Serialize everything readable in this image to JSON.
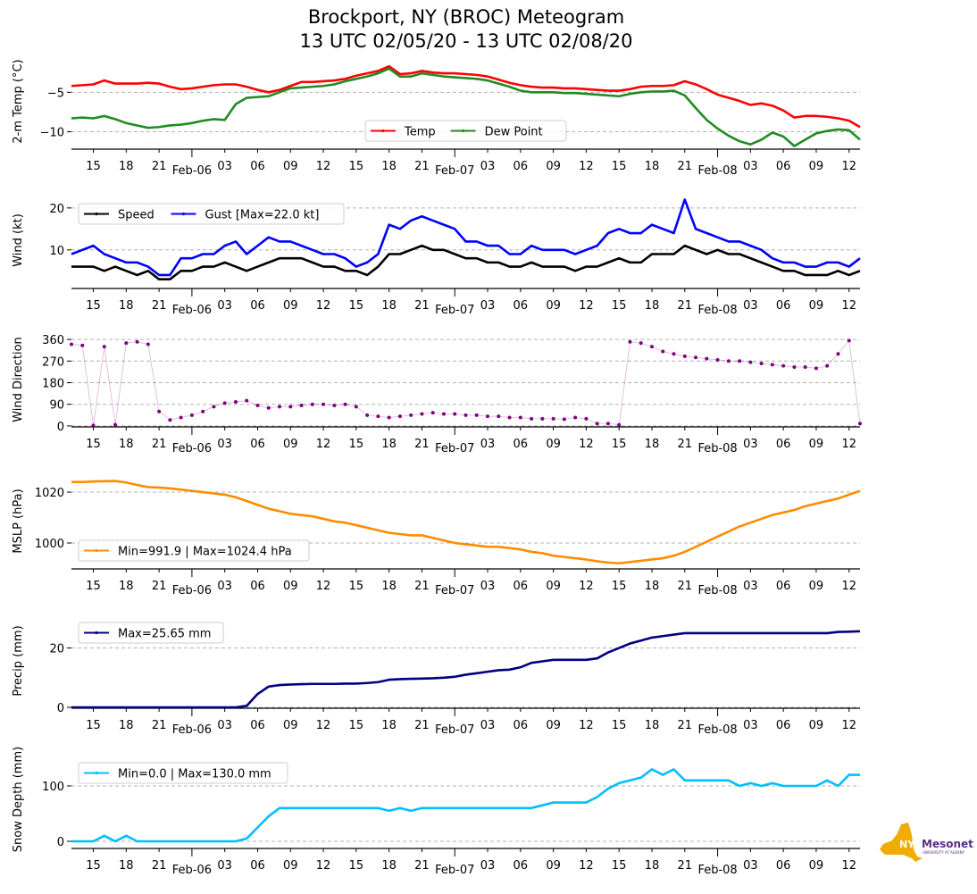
{
  "title": {
    "line1": "Brockport, NY (BROC) Meteogram",
    "line2": "13 UTC 02/05/20 - 13 UTC 02/08/20"
  },
  "logo": {
    "nys": "NYS",
    "name": "Mesonet",
    "sub": "UNIVERSITY AT ALBANY"
  },
  "chart_data": [
    {
      "type": "line",
      "id": "temp",
      "ylabel": "2-m Temp ($^\\circ$C)",
      "ylabel_display": "2-m Temp (°C)",
      "ylim": [
        -12.2,
        -0.1
      ],
      "yticks": [
        -5,
        -10
      ],
      "yticklabels": [
        "−5",
        "−10"
      ],
      "grid": true,
      "legend": {
        "placement": "lower-center",
        "ncol": 2
      },
      "series": [
        {
          "name": "Temp",
          "color": "#ff0000",
          "values": [
            -4.2,
            -4.1,
            -4.0,
            -3.5,
            -3.9,
            -3.9,
            -3.9,
            -3.8,
            -3.9,
            -4.3,
            -4.6,
            -4.5,
            -4.3,
            -4.1,
            -4.0,
            -4.0,
            -4.3,
            -4.7,
            -5.0,
            -4.7,
            -4.2,
            -3.7,
            -3.7,
            -3.6,
            -3.5,
            -3.3,
            -2.9,
            -2.6,
            -2.3,
            -1.7,
            -2.7,
            -2.6,
            -2.3,
            -2.5,
            -2.6,
            -2.6,
            -2.7,
            -2.8,
            -3.0,
            -3.4,
            -3.8,
            -4.1,
            -4.3,
            -4.4,
            -4.4,
            -4.5,
            -4.5,
            -4.6,
            -4.7,
            -4.8,
            -4.8,
            -4.6,
            -4.3,
            -4.2,
            -4.2,
            -4.1,
            -3.6,
            -4.0,
            -4.6,
            -5.3,
            -5.7,
            -6.1,
            -6.6,
            -6.4,
            -6.7,
            -7.3,
            -8.2,
            -8.0,
            -8.0,
            -8.1,
            -8.3,
            -8.6,
            -9.4
          ]
        },
        {
          "name": "Dew Point",
          "color": "#228b22",
          "values": [
            -8.3,
            -8.2,
            -8.3,
            -8.0,
            -8.4,
            -8.9,
            -9.2,
            -9.5,
            -9.4,
            -9.2,
            -9.1,
            -8.9,
            -8.6,
            -8.4,
            -8.5,
            -6.5,
            -5.7,
            -5.6,
            -5.5,
            -5.0,
            -4.5,
            -4.4,
            -4.3,
            -4.2,
            -4.0,
            -3.6,
            -3.3,
            -3.0,
            -2.6,
            -2.0,
            -3.0,
            -3.0,
            -2.6,
            -2.8,
            -3.0,
            -3.1,
            -3.2,
            -3.3,
            -3.5,
            -3.9,
            -4.3,
            -4.8,
            -5.0,
            -5.0,
            -5.0,
            -5.1,
            -5.1,
            -5.2,
            -5.3,
            -5.4,
            -5.5,
            -5.2,
            -5.0,
            -4.9,
            -4.9,
            -4.8,
            -5.4,
            -7.0,
            -8.5,
            -9.6,
            -10.5,
            -11.2,
            -11.6,
            -11.0,
            -10.1,
            -10.6,
            -11.8,
            -11.0,
            -10.2,
            -9.9,
            -9.7,
            -9.8,
            -11.0
          ]
        }
      ]
    },
    {
      "type": "line",
      "id": "wind",
      "ylabel": "Wind (kt)",
      "ylim": [
        0.8,
        23.8
      ],
      "yticks": [
        10,
        20
      ],
      "yticklabels": [
        "10",
        "20"
      ],
      "grid": true,
      "legend": {
        "placement": "upper-left",
        "ncol": 2
      },
      "series": [
        {
          "name": "Speed",
          "color": "#000000",
          "values": [
            6,
            6,
            6,
            5,
            6,
            5,
            4,
            5,
            3,
            3,
            5,
            5,
            6,
            6,
            7,
            6,
            5,
            6,
            7,
            8,
            8,
            8,
            7,
            6,
            6,
            5,
            5,
            4,
            6,
            9,
            9,
            10,
            11,
            10,
            10,
            9,
            8,
            8,
            7,
            7,
            6,
            6,
            7,
            6,
            6,
            6,
            5,
            6,
            6,
            7,
            8,
            7,
            7,
            9,
            9,
            9,
            11,
            10,
            9,
            10,
            9,
            9,
            8,
            7,
            6,
            5,
            5,
            4,
            4,
            4,
            5,
            4,
            5
          ]
        },
        {
          "name": "Gust [Max=22.0 kt]",
          "color": "#0000ff",
          "values": [
            9,
            10,
            11,
            9,
            8,
            7,
            7,
            6,
            4,
            4,
            8,
            8,
            9,
            9,
            11,
            12,
            9,
            11,
            13,
            12,
            12,
            11,
            10,
            9,
            9,
            8,
            6,
            7,
            9,
            16,
            15,
            17,
            18,
            17,
            16,
            15,
            12,
            12,
            11,
            11,
            9,
            9,
            11,
            10,
            10,
            10,
            9,
            10,
            11,
            14,
            15,
            14,
            14,
            16,
            15,
            14,
            22,
            15,
            14,
            13,
            12,
            12,
            11,
            10,
            8,
            7,
            7,
            6,
            6,
            7,
            7,
            6,
            8
          ]
        }
      ]
    },
    {
      "type": "scatter",
      "id": "direction",
      "ylabel": "Wind Direction",
      "ylim": [
        -4,
        390
      ],
      "yticks": [
        0,
        90,
        180,
        270,
        360
      ],
      "yticklabels": [
        "0",
        "90",
        "180",
        "270",
        "360"
      ],
      "grid": true,
      "series": [
        {
          "name": "Wind Direction",
          "color": "#800080",
          "values": [
            340,
            335,
            2,
            330,
            5,
            345,
            350,
            340,
            60,
            25,
            35,
            45,
            60,
            80,
            95,
            100,
            105,
            85,
            75,
            80,
            80,
            85,
            90,
            90,
            85,
            90,
            80,
            45,
            40,
            35,
            40,
            45,
            50,
            55,
            50,
            50,
            45,
            45,
            40,
            40,
            35,
            35,
            30,
            30,
            30,
            28,
            35,
            30,
            10,
            10,
            5,
            350,
            345,
            330,
            310,
            300,
            290,
            285,
            280,
            275,
            270,
            270,
            265,
            260,
            255,
            250,
            245,
            245,
            240,
            250,
            300,
            355,
            10
          ]
        }
      ]
    },
    {
      "type": "line",
      "id": "mslp",
      "ylabel": "MSLP (hPa)",
      "ylim": [
        989.8,
        1027.4
      ],
      "yticks": [
        1000,
        1020
      ],
      "yticklabels": [
        "1000",
        "1020"
      ],
      "grid": true,
      "legend": {
        "placement": "lower-left",
        "ncol": 1
      },
      "series": [
        {
          "name": "Min=991.9 | Max=1024.4 hPa",
          "color": "#ff8c00",
          "values": [
            1024,
            1024,
            1024.2,
            1024.3,
            1024.4,
            1023.8,
            1022.8,
            1022,
            1021.8,
            1021.5,
            1021,
            1020.5,
            1020,
            1019.5,
            1019,
            1018,
            1016.5,
            1015,
            1013.5,
            1012.5,
            1011.5,
            1011,
            1010.5,
            1009.5,
            1008.5,
            1008,
            1007,
            1006,
            1005,
            1004,
            1003.5,
            1003,
            1003,
            1002,
            1001,
            1000,
            999.5,
            999,
            998.5,
            998.5,
            998,
            997.5,
            996.5,
            996,
            995,
            994.5,
            994,
            993.5,
            992.8,
            992.3,
            992,
            992.5,
            993,
            993.5,
            994,
            995,
            996.5,
            998.5,
            1000.5,
            1002.5,
            1004.5,
            1006.5,
            1008,
            1009.5,
            1011,
            1012,
            1013,
            1014.5,
            1015.5,
            1016.5,
            1017.5,
            1019,
            1020.5
          ]
        }
      ]
    },
    {
      "type": "line",
      "id": "precip",
      "ylabel": "Precip (mm)",
      "ylim": [
        -0.3,
        31.6
      ],
      "yticks": [
        0,
        20
      ],
      "yticklabels": [
        "0",
        "20"
      ],
      "grid": true,
      "legend": {
        "placement": "upper-left",
        "ncol": 1
      },
      "series": [
        {
          "name": "Max=25.65 mm",
          "color": "#000080",
          "values": [
            0,
            0,
            0,
            0,
            0,
            0,
            0,
            0,
            0,
            0,
            0,
            0,
            0,
            0,
            0,
            0,
            0.5,
            4.5,
            7,
            7.5,
            7.7,
            7.8,
            7.9,
            7.9,
            7.9,
            8,
            8,
            8.2,
            8.5,
            9.3,
            9.5,
            9.6,
            9.7,
            9.8,
            10,
            10.3,
            11,
            11.5,
            12,
            12.5,
            12.7,
            13.5,
            15,
            15.5,
            16,
            16,
            16,
            16,
            16.5,
            18.5,
            20,
            21.5,
            22.5,
            23.5,
            24,
            24.5,
            25,
            25,
            25,
            25,
            25,
            25,
            25,
            25,
            25,
            25,
            25,
            25,
            25,
            25,
            25.4,
            25.5,
            25.65
          ]
        }
      ]
    },
    {
      "type": "line",
      "id": "snow",
      "ylabel": "Snow Depth (mm)",
      "ylim": [
        -12.9,
        164.5
      ],
      "yticks": [
        0,
        100
      ],
      "yticklabels": [
        "0",
        "100"
      ],
      "grid": true,
      "legend": {
        "placement": "upper-left",
        "ncol": 1
      },
      "series": [
        {
          "name": "Min=0.0 | Max=130.0 mm",
          "color": "#00bfff",
          "values": [
            0,
            0,
            0,
            10,
            0,
            10,
            0,
            0,
            0,
            0,
            0,
            0,
            0,
            0,
            0,
            0,
            5,
            25,
            45,
            60,
            60,
            60,
            60,
            60,
            60,
            60,
            60,
            60,
            60,
            55,
            60,
            55,
            60,
            60,
            60,
            60,
            60,
            60,
            60,
            60,
            60,
            60,
            60,
            65,
            70,
            70,
            70,
            70,
            80,
            95,
            105,
            110,
            115,
            130,
            120,
            130,
            110,
            110,
            110,
            110,
            110,
            100,
            105,
            100,
            105,
            100,
            100,
            100,
            100,
            110,
            100,
            120,
            120
          ]
        }
      ]
    }
  ],
  "x_axis": {
    "start": "13 UTC 02/05/20",
    "hours": 72,
    "start_hour": 13,
    "minor_labels": [
      "15",
      "18",
      "21",
      "03",
      "06",
      "09",
      "12",
      "15",
      "18",
      "21",
      "03",
      "06",
      "09",
      "12",
      "15",
      "18",
      "21",
      "03",
      "06",
      "09",
      "12"
    ],
    "major_labels": [
      "Feb-06",
      "Feb-07",
      "Feb-08"
    ]
  }
}
